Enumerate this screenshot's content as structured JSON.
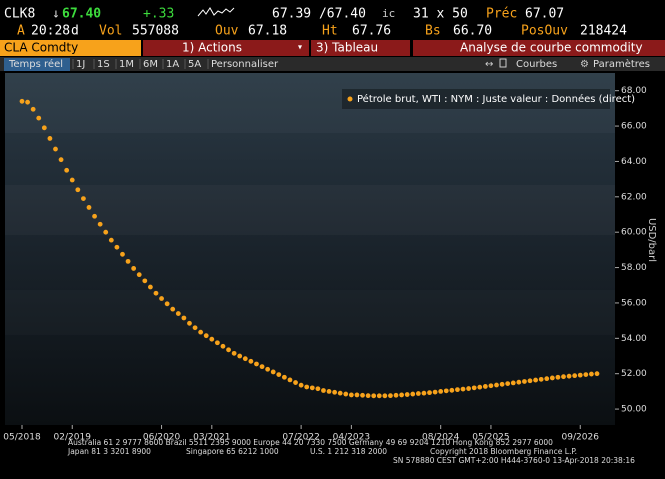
{
  "header": {
    "ticker": "CLK8",
    "direction": "↓",
    "last": "67.40",
    "change": "+.33",
    "bid_ask": "67.39 /67.40",
    "bid_ask_flag": "ic",
    "size": "31 x 50",
    "prev_label": "Préc",
    "prev": "67.07",
    "time_label": "A",
    "time": "20:28",
    "time_flag": "d",
    "vol_label": "Vol",
    "vol": "557088",
    "open_label": "Ouv",
    "open": "67.18",
    "high_label": "Ht",
    "high": "67.76",
    "low_label": "Bs",
    "low": "66.70",
    "oi_label": "PosOuv",
    "oi": "218424"
  },
  "toolbar": {
    "security": "CLA Comdty",
    "actions": "1) Actions",
    "table": "3) Tableau",
    "title": "Analyse de courbe commodity"
  },
  "tabs": [
    "Temps réel",
    "1J",
    "1S",
    "1M",
    "6M",
    "1A",
    "5A",
    "Personnaliser"
  ],
  "tools": {
    "curves": "Courbes",
    "settings": "Paramètres"
  },
  "footer": [
    "Australia 61 2 9777 8600 Brazil 5511 2395 9000 Europe 44 20 7330 7500 Germany 49 69 9204 1210 Hong Kong 852 2977 6000",
    "Japan 81 3 3201 8900",
    "Singapore 65 6212 1000",
    "U.S. 1 212 318 2000",
    "Copyright 2018 Bloomberg Finance L.P.",
    "SN 578880 CEST GMT+2:00 H444-3760-0 13-Apr-2018 20:38:16"
  ],
  "chart_data": {
    "type": "scatter",
    "y_label": "USD/barl",
    "x": [
      "05/2018",
      "06/2018",
      "07/2018",
      "08/2018",
      "09/2018",
      "10/2018",
      "11/2018",
      "12/2018",
      "01/2019",
      "02/2019",
      "03/2019",
      "04/2019",
      "05/2019",
      "06/2019",
      "07/2019",
      "08/2019",
      "09/2019",
      "10/2019",
      "11/2019",
      "12/2019",
      "01/2020",
      "02/2020",
      "03/2020",
      "04/2020",
      "05/2020",
      "06/2020",
      "07/2020",
      "08/2020",
      "09/2020",
      "10/2020",
      "11/2020",
      "12/2020",
      "01/2021",
      "02/2021",
      "03/2021",
      "04/2021",
      "05/2021",
      "06/2021",
      "07/2021",
      "08/2021",
      "09/2021",
      "10/2021",
      "11/2021",
      "12/2021",
      "01/2022",
      "02/2022",
      "03/2022",
      "04/2022",
      "05/2022",
      "06/2022",
      "07/2022",
      "08/2022",
      "09/2022",
      "10/2022",
      "11/2022",
      "12/2022",
      "01/2023",
      "02/2023",
      "03/2023",
      "04/2023",
      "05/2023",
      "06/2023",
      "07/2023",
      "08/2023",
      "09/2023",
      "10/2023",
      "11/2023",
      "12/2023",
      "01/2024",
      "02/2024",
      "03/2024",
      "04/2024",
      "05/2024",
      "06/2024",
      "07/2024",
      "08/2024",
      "09/2024",
      "10/2024",
      "11/2024",
      "12/2024",
      "01/2025",
      "02/2025",
      "03/2025",
      "04/2025",
      "05/2025",
      "06/2025",
      "07/2025",
      "08/2025",
      "09/2025",
      "10/2025",
      "11/2025",
      "12/2025",
      "01/2026",
      "02/2026",
      "03/2026",
      "04/2026",
      "05/2026",
      "06/2026",
      "07/2026",
      "08/2026",
      "09/2026",
      "10/2026",
      "11/2026",
      "12/2026"
    ],
    "series": [
      {
        "name": "Pétrole brut, WTI : NYM : Juste valeur : Données (direct)",
        "color": "#f7a21b",
        "values": [
          67.4,
          67.35,
          66.95,
          66.45,
          65.9,
          65.3,
          64.7,
          64.1,
          63.5,
          62.95,
          62.4,
          61.9,
          61.4,
          60.9,
          60.45,
          60.0,
          59.55,
          59.15,
          58.75,
          58.35,
          57.95,
          57.6,
          57.25,
          56.9,
          56.55,
          56.25,
          55.95,
          55.65,
          55.4,
          55.15,
          54.85,
          54.6,
          54.35,
          54.15,
          53.95,
          53.75,
          53.55,
          53.35,
          53.15,
          53.0,
          52.85,
          52.7,
          52.55,
          52.4,
          52.25,
          52.1,
          51.95,
          51.8,
          51.65,
          51.5,
          51.35,
          51.25,
          51.2,
          51.15,
          51.05,
          51.0,
          50.95,
          50.9,
          50.85,
          50.8,
          50.8,
          50.78,
          50.76,
          50.75,
          50.75,
          50.75,
          50.76,
          50.78,
          50.8,
          50.82,
          50.85,
          50.88,
          50.9,
          50.93,
          50.96,
          51.0,
          51.03,
          51.06,
          51.1,
          51.13,
          51.16,
          51.2,
          51.24,
          51.28,
          51.32,
          51.36,
          51.4,
          51.44,
          51.48,
          51.52,
          51.56,
          51.6,
          51.64,
          51.68,
          51.72,
          51.76,
          51.8,
          51.83,
          51.86,
          51.89,
          51.92,
          51.95,
          51.98,
          52.0
        ]
      }
    ],
    "ylim": [
      49.1,
      69
    ],
    "yticks": [
      {
        "value": 50,
        "label": "50.00"
      },
      {
        "value": 52,
        "label": "52.00"
      },
      {
        "value": 54,
        "label": "54.00"
      },
      {
        "value": 56,
        "label": "56.00"
      },
      {
        "value": 58,
        "label": "58.00"
      },
      {
        "value": 60,
        "label": "60.00"
      },
      {
        "value": 62,
        "label": "62.00"
      },
      {
        "value": 64,
        "label": "64.00"
      },
      {
        "value": 66,
        "label": "66.00"
      },
      {
        "value": 68,
        "label": "68.00"
      }
    ],
    "xticks": [
      "05/2018",
      "02/2019",
      "06/2020",
      "03/2021",
      "07/2022",
      "04/2023",
      "08/2024",
      "05/2025",
      "09/2026"
    ],
    "legend": "upper right"
  }
}
